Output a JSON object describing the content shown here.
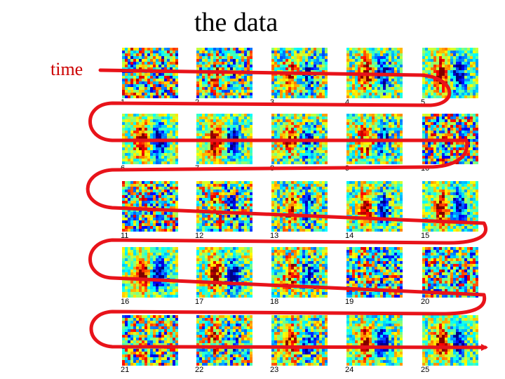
{
  "title": "the data",
  "time_label": "time",
  "colors": {
    "arrow": "#e8131a",
    "time_label": "#cc0000"
  },
  "colormap": "jet",
  "frames": [
    {
      "label": "1",
      "strength": 0.05
    },
    {
      "label": "2",
      "strength": 0.35
    },
    {
      "label": "3",
      "strength": 0.55
    },
    {
      "label": "4",
      "strength": 0.75
    },
    {
      "label": "5",
      "strength": 0.85
    },
    {
      "label": "6",
      "strength": 0.95
    },
    {
      "label": "7",
      "strength": 0.95
    },
    {
      "label": "8",
      "strength": 0.7
    },
    {
      "label": "9",
      "strength": 0.65
    },
    {
      "label": "10",
      "strength": 0.05
    },
    {
      "label": "11",
      "strength": 0.15
    },
    {
      "label": "12",
      "strength": 0.35
    },
    {
      "label": "13",
      "strength": 0.6
    },
    {
      "label": "14",
      "strength": 0.8
    },
    {
      "label": "15",
      "strength": 0.9
    },
    {
      "label": "16",
      "strength": 1.0
    },
    {
      "label": "17",
      "strength": 0.85
    },
    {
      "label": "18",
      "strength": 0.6
    },
    {
      "label": "19",
      "strength": 0.2
    },
    {
      "label": "20",
      "strength": 0.1
    },
    {
      "label": "21",
      "strength": 0.15
    },
    {
      "label": "22",
      "strength": 0.4
    },
    {
      "label": "23",
      "strength": 0.6
    },
    {
      "label": "24",
      "strength": 0.85
    },
    {
      "label": "25",
      "strength": 0.9
    }
  ]
}
